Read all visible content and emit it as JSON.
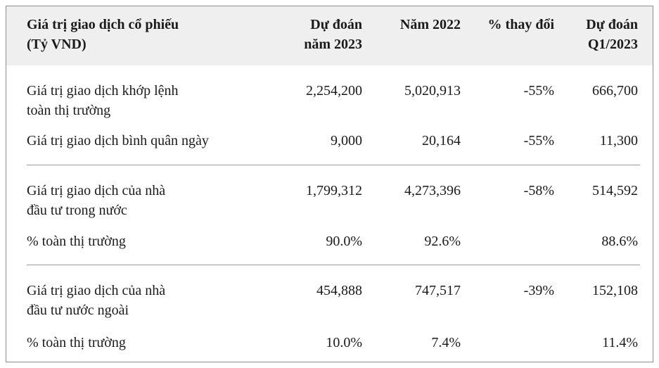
{
  "header": {
    "label": "Giá trị giao dịch cổ phiếu\n(Tỷ VND)",
    "col1": "Dự đoán\nnăm 2023",
    "col2": "Năm 2022",
    "col3": "% thay đổi",
    "col4": "Dự đoán\nQ1/2023"
  },
  "groups": [
    {
      "rows": [
        {
          "label": "Giá trị giao dịch khớp lệnh\ntoàn thị trường",
          "forecast_2023": "2,254,200",
          "y2022": "5,020,913",
          "change": "-55%",
          "q1_2023": "666,700"
        },
        {
          "label": "Giá trị giao dịch bình quân ngày",
          "forecast_2023": "9,000",
          "y2022": "20,164",
          "change": "-55%",
          "q1_2023": "11,300"
        }
      ]
    },
    {
      "rows": [
        {
          "label": "Giá trị giao dịch của nhà\nđầu tư trong nước",
          "forecast_2023": "1,799,312",
          "y2022": "4,273,396",
          "change": "-58%",
          "q1_2023": "514,592"
        },
        {
          "label": "% toàn thị trường",
          "forecast_2023": "90.0%",
          "y2022": "92.6%",
          "change": "",
          "q1_2023": "88.6%"
        }
      ]
    },
    {
      "rows": [
        {
          "label": "Giá trị giao dịch của nhà\nđầu tư nước ngoài",
          "forecast_2023": "454,888",
          "y2022": "747,517",
          "change": "-39%",
          "q1_2023": "152,108"
        },
        {
          "label": "% toàn thị trường",
          "forecast_2023": "10.0%",
          "y2022": "7.4%",
          "change": "",
          "q1_2023": "11.4%"
        }
      ]
    }
  ]
}
